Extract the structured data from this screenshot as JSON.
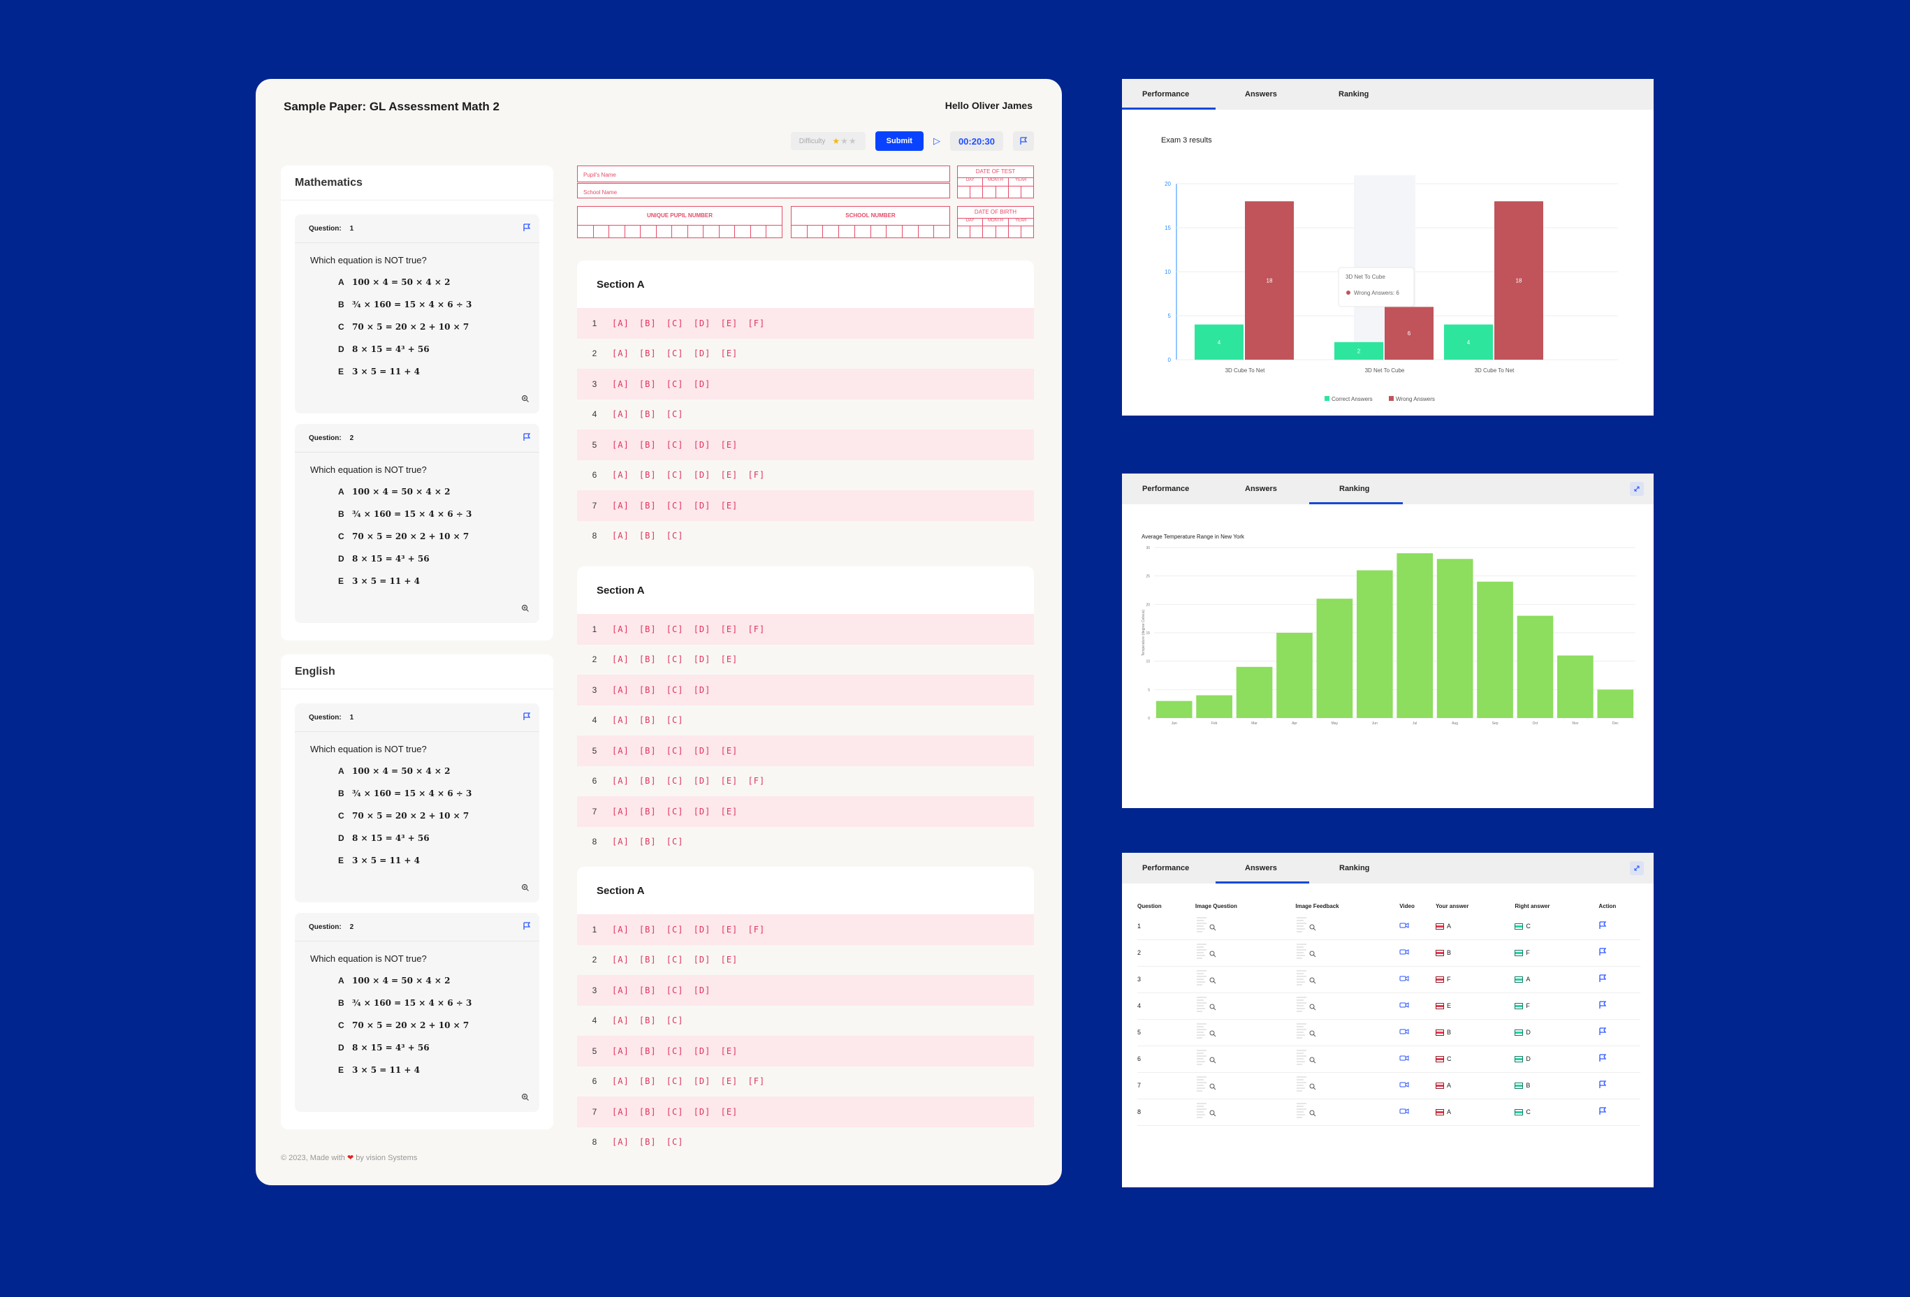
{
  "exam": {
    "title": "Sample Paper: GL Assessment Math 2",
    "greeting": "Hello Oliver James",
    "difficulty_label": "Difficulty",
    "difficulty_stars": "★★★",
    "submit_label": "Submit",
    "timer": "00:20:30",
    "footer_prefix": "© 2023, Made with",
    "footer_suffix": "by  vision Systems"
  },
  "subjects": [
    {
      "name": "Mathematics",
      "questions": [
        {
          "label": "Question:",
          "number": "1",
          "text": "Which equation is NOT true?"
        },
        {
          "label": "Question:",
          "number": "2",
          "text": "Which equation is NOT true?"
        }
      ]
    },
    {
      "name": "English",
      "questions": [
        {
          "label": "Question:",
          "number": "1",
          "text": "Which equation is NOT true?"
        },
        {
          "label": "Question:",
          "number": "2",
          "text": "Which equation is NOT true?"
        }
      ]
    }
  ],
  "options": [
    {
      "letter": "A",
      "text": "100 × 4 = 50 × 4 × 2"
    },
    {
      "letter": "B",
      "text": "¾ × 160 = 15 × 4 × 6 ÷ 3"
    },
    {
      "letter": "C",
      "text": "70 × 5 = 20 × 2 + 10 × 7"
    },
    {
      "letter": "D",
      "text": "8 × 15 = 4³ + 56"
    },
    {
      "letter": "E",
      "text": "3 × 5 = 11 + 4"
    }
  ],
  "form": {
    "pupil_name": "Pupil's Name",
    "school_name": "School Name",
    "date_of_test": "DATE OF TEST",
    "date_of_birth": "DATE OF BIRTH",
    "day": "DAY",
    "month": "MONTH",
    "year": "YEAR",
    "upn": "UNIQUE PUPIL NUMBER",
    "school_number": "SCHOOL NUMBER"
  },
  "sections": [
    {
      "title": "Section A",
      "rows": [
        {
          "n": "1",
          "choices": "[A] [B] [C] [D] [E] [F]"
        },
        {
          "n": "2",
          "choices": "[A] [B] [C] [D] [E]"
        },
        {
          "n": "3",
          "choices": "[A] [B] [C] [D]"
        },
        {
          "n": "4",
          "choices": "[A] [B] [C]"
        },
        {
          "n": "5",
          "choices": "[A] [B] [C] [D] [E]"
        },
        {
          "n": "6",
          "choices": "[A] [B] [C] [D] [E] [F]"
        },
        {
          "n": "7",
          "choices": "[A] [B] [C] [D] [E]"
        },
        {
          "n": "8",
          "choices": "[A] [B] [C]"
        }
      ]
    },
    {
      "title": "Section A",
      "rows": [
        {
          "n": "1",
          "choices": "[A] [B] [C] [D] [E] [F]"
        },
        {
          "n": "2",
          "choices": "[A] [B] [C] [D] [E]"
        },
        {
          "n": "3",
          "choices": "[A] [B] [C] [D]"
        },
        {
          "n": "4",
          "choices": "[A] [B] [C]"
        },
        {
          "n": "5",
          "choices": "[A] [B] [C] [D] [E]"
        },
        {
          "n": "6",
          "choices": "[A] [B] [C] [D] [E] [F]"
        },
        {
          "n": "7",
          "choices": "[A] [B] [C] [D] [E]"
        },
        {
          "n": "8",
          "choices": "[A] [B] [C]"
        }
      ]
    },
    {
      "title": "Section A",
      "rows": [
        {
          "n": "1",
          "choices": "[A] [B] [C] [D] [E] [F]"
        },
        {
          "n": "2",
          "choices": "[A] [B] [C] [D] [E]"
        },
        {
          "n": "3",
          "choices": "[A] [B] [C] [D]"
        },
        {
          "n": "4",
          "choices": "[A] [B] [C]"
        },
        {
          "n": "5",
          "choices": "[A] [B] [C] [D] [E]"
        },
        {
          "n": "6",
          "choices": "[A] [B] [C] [D] [E] [F]"
        },
        {
          "n": "7",
          "choices": "[A] [B] [C] [D] [E]"
        },
        {
          "n": "8",
          "choices": "[A] [B] [C]"
        }
      ]
    }
  ],
  "tabs": [
    "Performance",
    "Answers",
    "Ranking"
  ],
  "chart_data": [
    {
      "type": "bar",
      "title": "Exam 3 results",
      "categories": [
        "3D Cube To Net",
        "3D Net To Cube",
        "3D Cube To Net"
      ],
      "series": [
        {
          "name": "Correct Answers",
          "color": "#2ee59d",
          "values": [
            4,
            2,
            4
          ]
        },
        {
          "name": "Wrong Answers",
          "color": "#c0545a",
          "values": [
            18,
            6,
            18
          ]
        }
      ],
      "ylim": [
        0,
        20
      ],
      "yticks": [
        0,
        5,
        10,
        15,
        20
      ],
      "legend": "bottom",
      "tooltip": {
        "title": "3D Net To Cube",
        "label": "Wrong Answers:",
        "value": "6"
      }
    },
    {
      "type": "bar",
      "title": "Average Temperature Range in New York",
      "categories": [
        "Jan",
        "Feb",
        "Mar",
        "Apr",
        "May",
        "Jun",
        "Jul",
        "Aug",
        "Sep",
        "Oct",
        "Nov",
        "Dec"
      ],
      "values": [
        3,
        4,
        9,
        15,
        21,
        26,
        29,
        28,
        24,
        18,
        11,
        5
      ],
      "color": "#8ddd5f",
      "ylabel": "Temperature (degree Celsius)",
      "ylim": [
        0,
        30
      ],
      "yticks": [
        0,
        5,
        10,
        15,
        20,
        25,
        30
      ]
    }
  ],
  "answers_table": {
    "headers": [
      "Question",
      "Image Question",
      "Image Feedback",
      "Video",
      "Your answer",
      "Right answer",
      "Action"
    ],
    "rows": [
      {
        "q": "1",
        "yours": "A",
        "right": "C"
      },
      {
        "q": "2",
        "yours": "B",
        "right": "F"
      },
      {
        "q": "3",
        "yours": "F",
        "right": "A"
      },
      {
        "q": "4",
        "yours": "E",
        "right": "F"
      },
      {
        "q": "5",
        "yours": "B",
        "right": "D"
      },
      {
        "q": "6",
        "yours": "C",
        "right": "D"
      },
      {
        "q": "7",
        "yours": "A",
        "right": "B"
      },
      {
        "q": "8",
        "yours": "A",
        "right": "C"
      }
    ]
  },
  "colors": {
    "background": "#00258f",
    "accent": "#0a43ff",
    "answer_red": "#e0325a",
    "row_pink": "#fde8ec"
  }
}
